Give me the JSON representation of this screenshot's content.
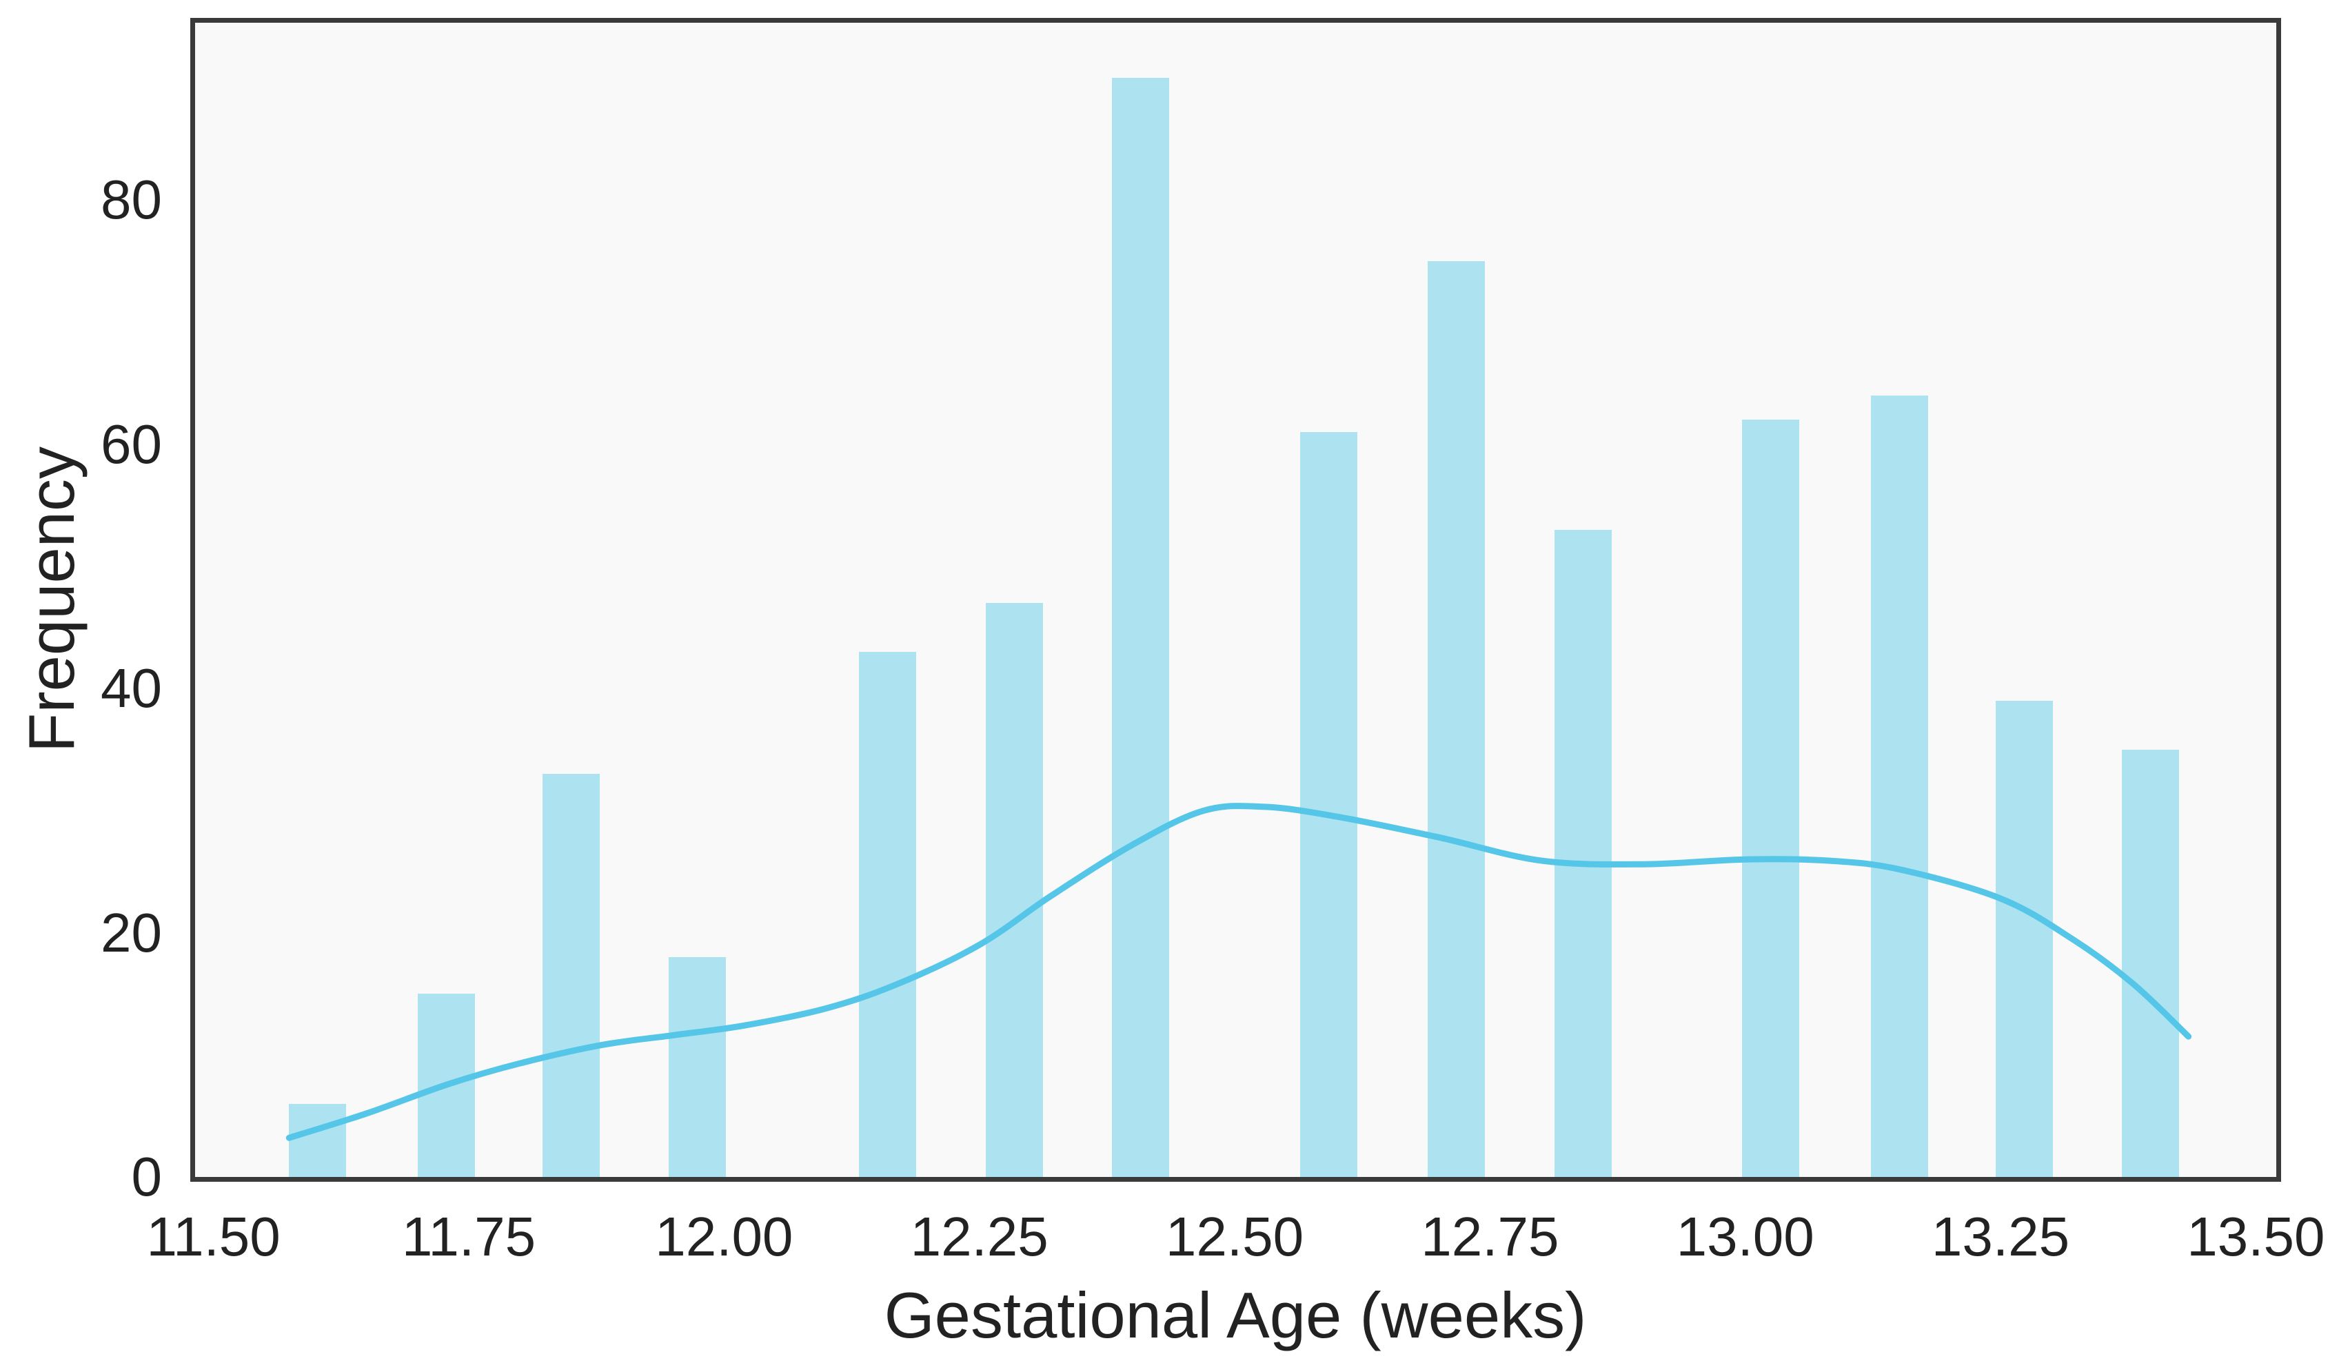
{
  "figure": {
    "background": "#ffffff",
    "plot_background": "#f9f9f9",
    "frame_color": "#3a3a3a",
    "text_color": "#222222"
  },
  "chart_data": {
    "type": "bar",
    "subtype": "histogram_with_kde_overlay",
    "title": "",
    "xlabel": "Gestational Age (weeks)",
    "ylabel": "Frequency",
    "xlim": [
      11.482,
      13.52
    ],
    "ylim": [
      0,
      94.5
    ],
    "grid": false,
    "legend": "none",
    "bar_color": "#ade3f1",
    "line_color": "#55c6e8",
    "bar_width_weeks": 0.056,
    "xticks": {
      "values": [
        11.5,
        11.75,
        12.0,
        12.25,
        12.5,
        12.75,
        13.0,
        13.25,
        13.5
      ],
      "labels": [
        "11.50",
        "11.75",
        "12.00",
        "12.25",
        "12.50",
        "12.75",
        "13.00",
        "13.25",
        "13.50"
      ]
    },
    "yticks": {
      "values": [
        0,
        20,
        40,
        60,
        80
      ],
      "labels": [
        "0",
        "20",
        "40",
        "60",
        "80"
      ]
    },
    "bars": [
      {
        "x": 11.602,
        "count": 6
      },
      {
        "x": 11.728,
        "count": 15
      },
      {
        "x": 11.85,
        "count": 33
      },
      {
        "x": 11.974,
        "count": 18
      },
      {
        "x": 12.16,
        "count": 43
      },
      {
        "x": 12.284,
        "count": 47
      },
      {
        "x": 12.408,
        "count": 90
      },
      {
        "x": 12.592,
        "count": 61
      },
      {
        "x": 12.717,
        "count": 75
      },
      {
        "x": 12.841,
        "count": 53
      },
      {
        "x": 13.025,
        "count": 62
      },
      {
        "x": 13.151,
        "count": 64
      },
      {
        "x": 13.273,
        "count": 39
      },
      {
        "x": 13.397,
        "count": 35
      }
    ],
    "kde_curve": [
      [
        11.574,
        3.2
      ],
      [
        11.65,
        5.2
      ],
      [
        11.73,
        7.6
      ],
      [
        11.8,
        9.3
      ],
      [
        11.88,
        10.8
      ],
      [
        11.95,
        11.6
      ],
      [
        12.02,
        12.4
      ],
      [
        12.1,
        13.8
      ],
      [
        12.17,
        15.8
      ],
      [
        12.25,
        19.0
      ],
      [
        12.32,
        23.0
      ],
      [
        12.4,
        27.2
      ],
      [
        12.47,
        30.0
      ],
      [
        12.53,
        30.3
      ],
      [
        12.6,
        29.5
      ],
      [
        12.7,
        27.8
      ],
      [
        12.8,
        25.9
      ],
      [
        12.9,
        25.6
      ],
      [
        13.0,
        26.0
      ],
      [
        13.08,
        25.9
      ],
      [
        13.15,
        25.2
      ],
      [
        13.25,
        22.8
      ],
      [
        13.32,
        19.5
      ],
      [
        13.38,
        15.8
      ],
      [
        13.434,
        11.5
      ]
    ]
  }
}
